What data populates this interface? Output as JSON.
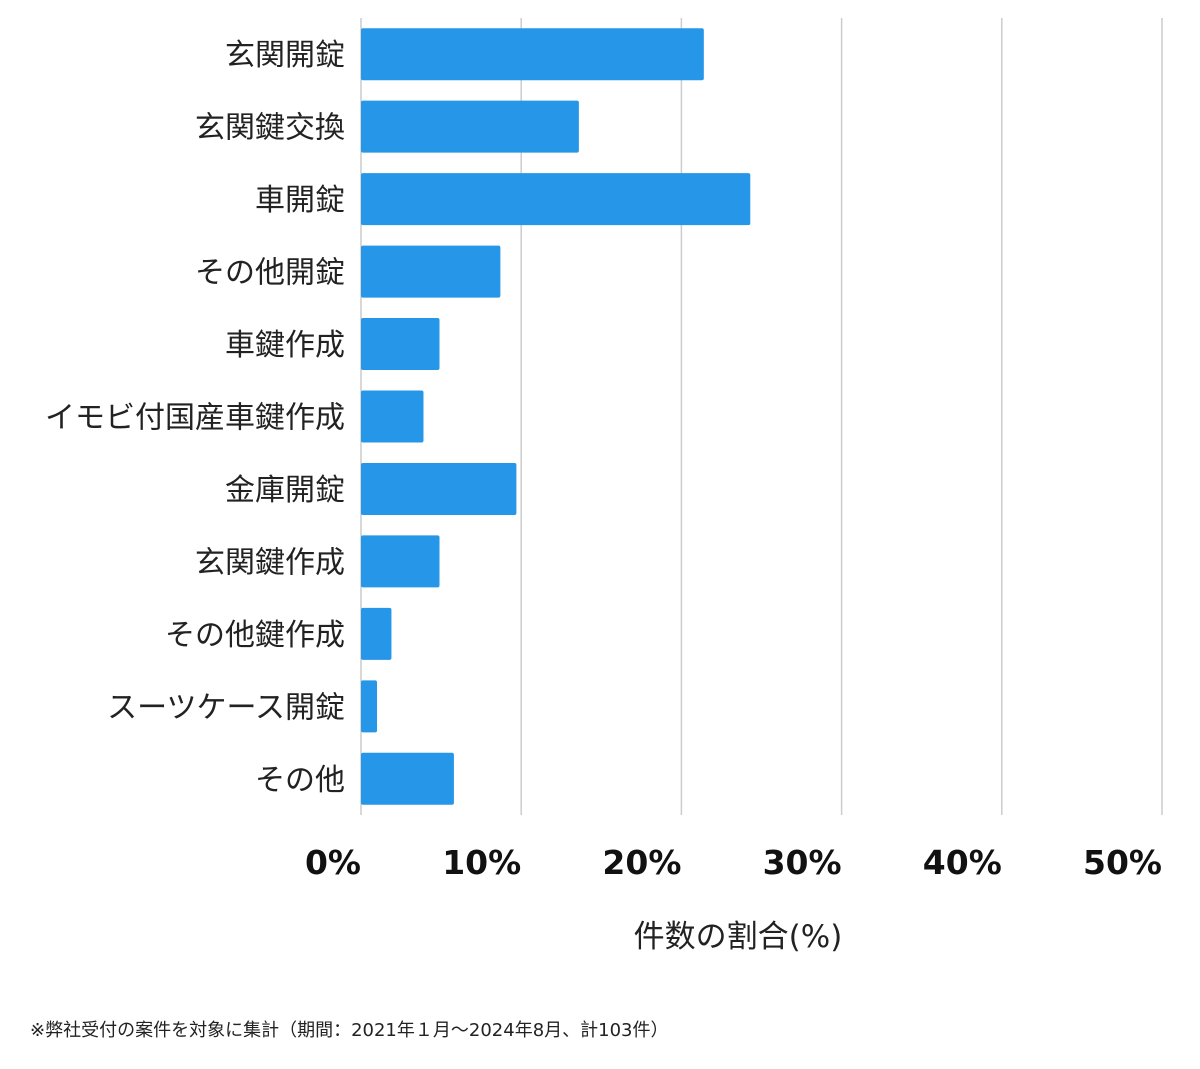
{
  "chart_data": {
    "type": "bar",
    "orientation": "horizontal",
    "categories": [
      "玄関開錠",
      "玄関鍵交換",
      "車開錠",
      "その他開錠",
      "車鍵作成",
      "イモビ付国産車鍵作成",
      "金庫開錠",
      "玄関鍵作成",
      "その他鍵作成",
      "スーツケース開錠",
      "その他"
    ],
    "values": [
      21.4,
      13.6,
      24.3,
      8.7,
      4.9,
      3.9,
      9.7,
      4.9,
      1.9,
      1.0,
      5.8
    ],
    "xlim": [
      0,
      50
    ],
    "xticks": [
      0,
      10,
      20,
      30,
      40,
      50
    ],
    "xtick_labels": [
      "0%",
      "10%",
      "20%",
      "30%",
      "40%",
      "50%"
    ],
    "xlabel": "件数の割合(%)",
    "ylabel": "",
    "title": "",
    "grid": true,
    "bar_color": "#2596e8",
    "grid_color": "#cccccc"
  },
  "footnote": "※弊社受付の案件を対象に集計（期間：2021年１月〜2024年8月、計103件）"
}
